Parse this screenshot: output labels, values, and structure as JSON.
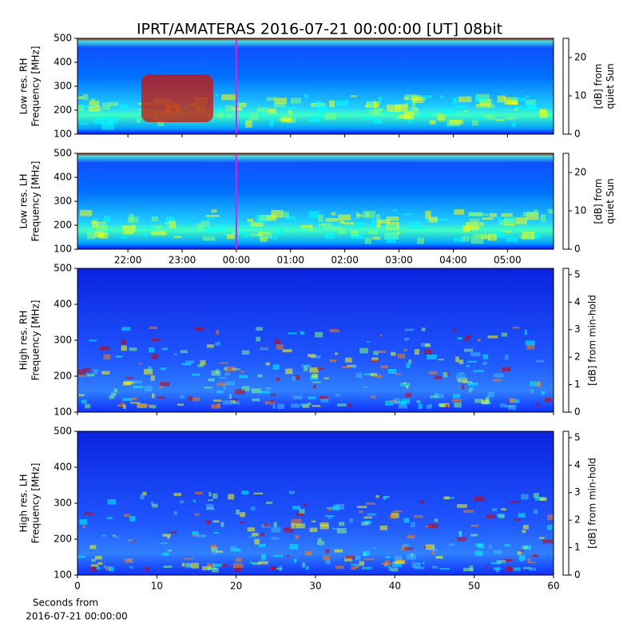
{
  "title": "IPRT/AMATERAS 2016-07-21 00:00:00 [UT]   08bit",
  "chart_data": [
    {
      "type": "heatmap",
      "ylabel": [
        "Low res. RH",
        "Frequency [MHz]"
      ],
      "colormap": "jet",
      "xlim": [
        -2.93,
        5.85
      ],
      "xticks": [
        -2,
        -1,
        0,
        1,
        2,
        3,
        4,
        5
      ],
      "xticklabels": false,
      "ylim": [
        100,
        500
      ],
      "yticks": [
        100,
        200,
        300,
        400,
        500
      ],
      "colorbar": {
        "label": [
          "[dB] from",
          "quiet Sun"
        ],
        "lim": [
          0,
          25
        ],
        "ticks": [
          0,
          10,
          20
        ]
      }
    },
    {
      "type": "heatmap",
      "ylabel": [
        "Low res. LH",
        "Frequency [MHz]"
      ],
      "colormap": "jet",
      "xlim": [
        -2.93,
        5.85
      ],
      "xticks": [
        {
          "value": -2,
          "label": "22:00"
        },
        {
          "value": -1,
          "label": "23:00"
        },
        {
          "value": 0,
          "label": "00:00"
        },
        {
          "value": 1,
          "label": "01:00"
        },
        {
          "value": 2,
          "label": "02:00"
        },
        {
          "value": 3,
          "label": "03:00"
        },
        {
          "value": 4,
          "label": "04:00"
        },
        {
          "value": 5,
          "label": "05:00"
        }
      ],
      "xticklabels": true,
      "ylim": [
        100,
        500
      ],
      "yticks": [
        100,
        200,
        300,
        400,
        500
      ],
      "colorbar": {
        "label": [
          "[dB] from",
          "quiet Sun"
        ],
        "lim": [
          0,
          25
        ],
        "ticks": [
          0,
          10,
          20
        ]
      }
    },
    {
      "type": "heatmap",
      "ylabel": [
        "High res. RH",
        "Frequency [MHz]"
      ],
      "colormap": "jet",
      "xlim": [
        0,
        60
      ],
      "xticks": [
        0,
        10,
        20,
        30,
        40,
        50,
        60
      ],
      "xticklabels": false,
      "ylim": [
        100,
        500
      ],
      "yticks": [
        100,
        200,
        300,
        400,
        500
      ],
      "colorbar": {
        "label": [
          "[dB] from min-hold"
        ],
        "lim": [
          0,
          5.23
        ],
        "ticks": [
          0,
          1,
          2,
          3,
          4,
          5
        ]
      }
    },
    {
      "type": "heatmap",
      "ylabel": [
        "High res. LH",
        "Frequency [MHz]"
      ],
      "colormap": "jet",
      "xlabel": [
        "Seconds from",
        "2016-07-21 00:00:00"
      ],
      "xlim": [
        0,
        60
      ],
      "xticks": [
        0,
        10,
        20,
        30,
        40,
        50,
        60
      ],
      "xticklabels": true,
      "ylim": [
        100,
        500
      ],
      "yticks": [
        100,
        200,
        300,
        400,
        500
      ],
      "colorbar": {
        "label": [
          "[dB] from min-hold"
        ],
        "lim": [
          0,
          5.23
        ],
        "ticks": [
          0,
          1,
          2,
          3,
          4,
          5
        ]
      }
    }
  ]
}
